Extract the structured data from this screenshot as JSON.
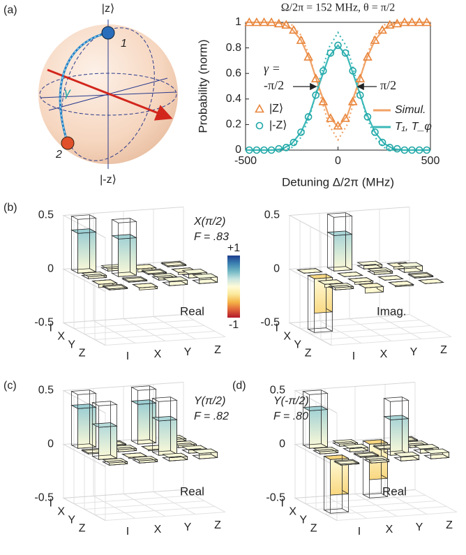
{
  "bloch": {
    "panel": "(a)",
    "top": "|z⟩",
    "bottom": "|-z⟩",
    "point1": "1",
    "point2": "2",
    "angle": "γ"
  },
  "colorbar": {
    "clim": [
      -1,
      1
    ],
    "colors": [
      "#b2182b",
      "#e0613a",
      "#f5b447",
      "#fbe89a",
      "#fffbd8",
      "#c6e4e0",
      "#6fb6c4",
      "#3a7fb0",
      "#1d3d8f"
    ],
    "ticks": [
      {
        "value": 1,
        "label": "+1"
      },
      -1
    ]
  },
  "chart_data": [
    {
      "type": "line",
      "title": "Ω/2π = 152 MHz, θ = π/2",
      "x_label": "Detuning Δ/2π (MHz)",
      "y_label": "Probability (norm)",
      "xlim": [
        -500,
        500
      ],
      "xticks": [
        -500,
        0,
        500
      ],
      "ylim": [
        0,
        1
      ],
      "yticks": [
        0,
        0.2,
        0.4,
        0.6,
        0.8,
        1
      ],
      "annotations": [
        "γ =",
        "-π/2",
        "π/2"
      ],
      "series": [
        {
          "name": "|Z⟩",
          "color": "#e8843a",
          "mode": "markers",
          "marker": "triangle",
          "x": [
            -480,
            -440,
            -400,
            -360,
            -320,
            -280,
            -240,
            -200,
            -160,
            -120,
            -80,
            -40,
            0,
            40,
            80,
            120,
            160,
            200,
            240,
            280,
            320,
            360,
            400,
            440,
            480
          ],
          "values": [
            1,
            1,
            1,
            1,
            0.99,
            0.98,
            0.94,
            0.86,
            0.73,
            0.56,
            0.38,
            0.25,
            0.19,
            0.25,
            0.38,
            0.56,
            0.73,
            0.86,
            0.94,
            0.98,
            0.99,
            1,
            1,
            1,
            1
          ]
        },
        {
          "name": "|-Z⟩",
          "color": "#1fa6a6",
          "mode": "markers",
          "marker": "circle",
          "x": [
            -480,
            -440,
            -400,
            -360,
            -320,
            -280,
            -240,
            -200,
            -160,
            -120,
            -80,
            -40,
            0,
            40,
            80,
            120,
            160,
            200,
            240,
            280,
            320,
            360,
            400,
            440,
            480
          ],
          "values": [
            0,
            0,
            0,
            0,
            0.01,
            0.02,
            0.06,
            0.14,
            0.26,
            0.43,
            0.62,
            0.76,
            0.82,
            0.76,
            0.62,
            0.43,
            0.26,
            0.14,
            0.06,
            0.02,
            0.01,
            0,
            0,
            0,
            0
          ]
        },
        {
          "name": "Simul.",
          "color": "#f0a266",
          "mode": "lines",
          "dash": false,
          "x": [
            -500,
            -450,
            -400,
            -350,
            -300,
            -250,
            -200,
            -150,
            -100,
            -50,
            0,
            50,
            100,
            150,
            200,
            250,
            300,
            350,
            400,
            450,
            500
          ],
          "values": [
            1,
            1,
            1,
            1,
            0.99,
            0.95,
            0.86,
            0.7,
            0.48,
            0.27,
            0.18,
            0.27,
            0.48,
            0.7,
            0.86,
            0.95,
            0.99,
            1,
            1,
            1,
            1
          ]
        },
        {
          "name": "T₁, T_φ",
          "color": "#3cb8b8",
          "mode": "lines",
          "dash": false,
          "x": [
            -500,
            -450,
            -400,
            -350,
            -300,
            -250,
            -200,
            -150,
            -100,
            -50,
            0,
            50,
            100,
            150,
            200,
            250,
            300,
            350,
            400,
            450,
            500
          ],
          "values": [
            0,
            0,
            0,
            0,
            0.01,
            0.05,
            0.14,
            0.3,
            0.52,
            0.73,
            0.82,
            0.73,
            0.52,
            0.3,
            0.14,
            0.05,
            0.01,
            0,
            0,
            0,
            0
          ]
        },
        {
          "color": "#f0a266",
          "mode": "lines",
          "dash": true,
          "x": [
            -500,
            -450,
            -400,
            -350,
            -300,
            -250,
            -200,
            -150,
            -100,
            -50,
            0,
            50,
            100,
            150,
            200,
            250,
            300,
            350,
            400,
            450,
            500
          ],
          "values": [
            1,
            1,
            1,
            1,
            1,
            0.98,
            0.9,
            0.72,
            0.45,
            0.2,
            0.08,
            0.2,
            0.45,
            0.72,
            0.9,
            0.98,
            1,
            1,
            1,
            1,
            1
          ]
        },
        {
          "color": "#3cb8b8",
          "mode": "lines",
          "dash": true,
          "x": [
            -500,
            -450,
            -400,
            -350,
            -300,
            -250,
            -200,
            -150,
            -100,
            -50,
            0,
            50,
            100,
            150,
            200,
            250,
            300,
            350,
            400,
            450,
            500
          ],
          "values": [
            0,
            0,
            0,
            0,
            0,
            0.02,
            0.1,
            0.28,
            0.55,
            0.8,
            0.92,
            0.8,
            0.55,
            0.28,
            0.1,
            0.02,
            0,
            0,
            0,
            0,
            0
          ]
        }
      ]
    },
    {
      "type": "bar3d",
      "panel": "(b)",
      "gate": "X(π/2)",
      "fidelity": "F = .83",
      "part": "Real",
      "rows": [
        "I",
        "X",
        "Y",
        "Z"
      ],
      "cols": [
        "I",
        "X",
        "Y",
        "Z"
      ],
      "zlim": [
        -0.5,
        0.5
      ],
      "zticks": [
        0.5,
        0,
        -0.5
      ],
      "values": [
        [
          0.37,
          0.02,
          -0.03,
          0.01
        ],
        [
          0.02,
          0.35,
          0.01,
          -0.02
        ],
        [
          -0.03,
          0.01,
          0.02,
          0.04
        ],
        [
          0.01,
          -0.02,
          0.04,
          0.05
        ]
      ],
      "ideal": [
        [
          0.5,
          0,
          0,
          0
        ],
        [
          0,
          0.5,
          0,
          0
        ],
        [
          0,
          0,
          0,
          0
        ],
        [
          0,
          0,
          0,
          0
        ]
      ]
    },
    {
      "type": "bar3d",
      "part": "Imag.",
      "rows": [
        "I",
        "X",
        "Y",
        "Z"
      ],
      "cols": [
        "I",
        "X",
        "Y",
        "Z"
      ],
      "zlim": [
        -0.5,
        0.5
      ],
      "zticks": [
        0.5,
        0,
        -0.5
      ],
      "values": [
        [
          0,
          0.33,
          0.03,
          -0.02
        ],
        [
          -0.32,
          0,
          0.02,
          0.05
        ],
        [
          -0.03,
          -0.02,
          0,
          0.01
        ],
        [
          0.02,
          -0.05,
          -0.01,
          0
        ]
      ],
      "ideal": [
        [
          0,
          0.5,
          0,
          0
        ],
        [
          -0.5,
          0,
          0,
          0
        ],
        [
          0,
          0,
          0,
          0
        ],
        [
          0,
          0,
          0,
          0
        ]
      ]
    },
    {
      "type": "bar3d",
      "panel": "(c)",
      "gate": "Y(π/2)",
      "fidelity": "F = .82",
      "part": "Real",
      "rows": [
        "I",
        "X",
        "Y",
        "Z"
      ],
      "cols": [
        "I",
        "X",
        "Y",
        "Z"
      ],
      "zlim": [
        -0.5,
        0.5
      ],
      "zticks": [
        0.5,
        0,
        -0.5
      ],
      "values": [
        [
          0.37,
          0.01,
          0.37,
          0.02
        ],
        [
          0.01,
          0.02,
          -0.01,
          0.02
        ],
        [
          0.3,
          -0.01,
          0.32,
          0.03
        ],
        [
          0.02,
          0.02,
          0.03,
          0.05
        ]
      ],
      "ideal": [
        [
          0.5,
          0,
          0.5,
          0
        ],
        [
          0,
          0,
          0,
          0
        ],
        [
          0.5,
          0,
          0.5,
          0
        ],
        [
          0,
          0,
          0,
          0
        ]
      ]
    },
    {
      "type": "bar3d",
      "panel": "(d)",
      "gate": "Y(-π/2)",
      "fidelity": "F = .80",
      "part": "Real",
      "rows": [
        "I",
        "X",
        "Y",
        "Z"
      ],
      "cols": [
        "I",
        "X",
        "Y",
        "Z"
      ],
      "zlim": [
        -0.5,
        0.5
      ],
      "zticks": [
        0.5,
        0,
        -0.5
      ],
      "values": [
        [
          0.35,
          0.02,
          -0.33,
          0.01
        ],
        [
          0.02,
          0.03,
          0.01,
          0.02
        ],
        [
          -0.33,
          0.01,
          0.33,
          0.04
        ],
        [
          0.01,
          0.02,
          0.04,
          0.05
        ]
      ],
      "ideal": [
        [
          0.5,
          0,
          -0.5,
          0
        ],
        [
          0,
          0,
          0,
          0
        ],
        [
          -0.5,
          0,
          0.5,
          0
        ],
        [
          0,
          0,
          0,
          0
        ]
      ]
    }
  ]
}
